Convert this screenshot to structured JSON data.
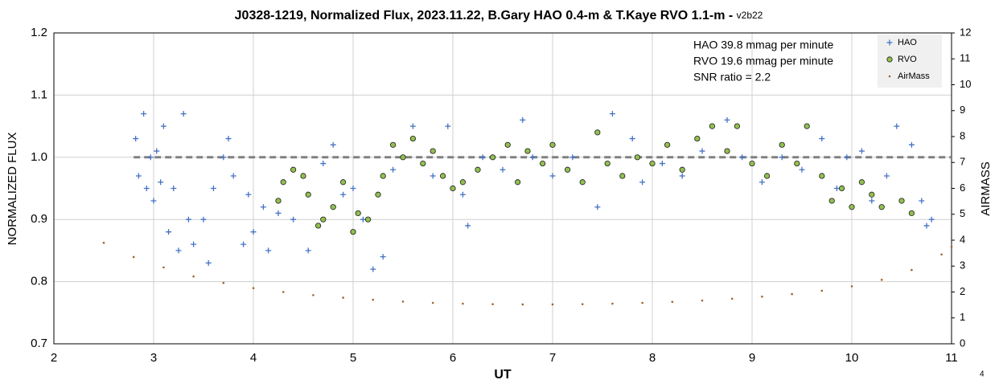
{
  "chart_data": {
    "type": "scatter",
    "title": "J0328-1219, Normalized Flux, 2023.11.22, B.Gary HAO 0.4-m & T.Kaye RVO 1.1-m - ",
    "title_suffix": "v2b22",
    "x_label": "UT",
    "y_label": "NORMALIZED FLUX",
    "y2_label": "AIRMASS",
    "annotations": [
      "HAO 39.8 mmag per minute",
      "RVO 19.6 mmag per minute",
      "SNR ratio = 2.2"
    ],
    "footer": "4",
    "xlim": [
      2,
      11
    ],
    "xticks": [
      2,
      3,
      4,
      5,
      6,
      7,
      8,
      9,
      10,
      11
    ],
    "ylim": [
      0.7,
      1.2
    ],
    "yticks": [
      0.7,
      0.8,
      0.9,
      {
        "value": 1,
        "label": "1.0"
      },
      1.1,
      1.2
    ],
    "y2lim": [
      0,
      12
    ],
    "y2ticks": [
      0,
      1,
      2,
      3,
      4,
      5,
      6,
      7,
      8,
      9,
      10,
      11,
      12
    ],
    "grid": true,
    "reference_line": {
      "y": 1,
      "x": [
        2.8,
        11
      ],
      "color": "#808080"
    },
    "series": [
      {
        "name": "HAO",
        "color": "#4472c4",
        "marker": "plus",
        "x": [
          2.82,
          2.85,
          2.9,
          2.93,
          2.97,
          3.0,
          3.03,
          3.07,
          3.1,
          3.15,
          3.2,
          3.25,
          3.3,
          3.35,
          3.4,
          3.5,
          3.55,
          3.6,
          3.7,
          3.75,
          3.8,
          3.9,
          3.95,
          4.0,
          4.1,
          4.15,
          4.25,
          4.4,
          4.55,
          4.7,
          4.8,
          4.9,
          5.0,
          5.1,
          5.2,
          5.3,
          5.4,
          5.6,
          5.8,
          5.95,
          6.1,
          6.15,
          6.3,
          6.5,
          6.7,
          6.8,
          7.0,
          7.2,
          7.45,
          7.6,
          7.8,
          7.9,
          8.1,
          8.3,
          8.5,
          8.75,
          8.9,
          9.1,
          9.3,
          9.5,
          9.7,
          9.85,
          9.95,
          10.1,
          10.2,
          10.35,
          10.45,
          10.6,
          10.7,
          10.75,
          10.8
        ],
        "values": [
          1.03,
          0.97,
          1.07,
          0.95,
          1.0,
          0.93,
          1.01,
          0.96,
          1.05,
          0.88,
          0.95,
          0.85,
          1.07,
          0.9,
          0.86,
          0.9,
          0.83,
          0.95,
          1.0,
          1.03,
          0.97,
          0.86,
          0.94,
          0.88,
          0.92,
          0.85,
          0.91,
          0.9,
          0.85,
          0.99,
          1.02,
          0.94,
          0.95,
          0.9,
          0.82,
          0.84,
          0.98,
          1.05,
          0.97,
          1.05,
          0.94,
          0.89,
          1.0,
          0.98,
          1.06,
          1.0,
          0.97,
          1.0,
          0.92,
          1.07,
          1.03,
          0.96,
          0.99,
          0.97,
          1.01,
          1.06,
          1.0,
          0.96,
          1.0,
          0.98,
          1.03,
          0.95,
          1.0,
          1.01,
          0.93,
          0.97,
          1.05,
          1.02,
          0.93,
          0.89,
          0.9
        ]
      },
      {
        "name": "RVO",
        "color": "#92c050",
        "marker": "circle",
        "x": [
          4.25,
          4.3,
          4.4,
          4.5,
          4.55,
          4.65,
          4.7,
          4.8,
          4.9,
          5.0,
          5.05,
          5.15,
          5.25,
          5.3,
          5.4,
          5.5,
          5.6,
          5.7,
          5.8,
          5.9,
          6.0,
          6.1,
          6.25,
          6.4,
          6.55,
          6.65,
          6.75,
          6.9,
          7.0,
          7.15,
          7.3,
          7.45,
          7.55,
          7.7,
          7.85,
          8.0,
          8.15,
          8.3,
          8.45,
          8.6,
          8.75,
          8.85,
          9.0,
          9.15,
          9.3,
          9.45,
          9.55,
          9.7,
          9.8,
          9.9,
          10.0,
          10.1,
          10.2,
          10.3,
          10.5,
          10.6
        ],
        "values": [
          0.93,
          0.96,
          0.98,
          0.97,
          0.94,
          0.89,
          0.9,
          0.92,
          0.96,
          0.88,
          0.91,
          0.9,
          0.94,
          0.97,
          1.02,
          1.0,
          1.03,
          0.99,
          1.01,
          0.97,
          0.95,
          0.96,
          0.98,
          1.0,
          1.02,
          0.96,
          1.01,
          0.99,
          1.02,
          0.98,
          0.96,
          1.04,
          0.99,
          0.97,
          1.0,
          0.99,
          1.02,
          0.98,
          1.03,
          1.05,
          1.01,
          1.05,
          0.99,
          0.97,
          1.02,
          0.99,
          1.05,
          0.97,
          0.93,
          0.95,
          0.92,
          0.96,
          0.94,
          0.92,
          0.93,
          0.91
        ]
      },
      {
        "name": "AirMass",
        "color": "#a0642a",
        "marker": "dot",
        "axis": "y2",
        "x": [
          2.5,
          2.8,
          3.1,
          3.4,
          3.7,
          4.0,
          4.3,
          4.6,
          4.9,
          5.2,
          5.5,
          5.8,
          6.1,
          6.4,
          6.7,
          7.0,
          7.3,
          7.6,
          7.9,
          8.2,
          8.5,
          8.8,
          9.1,
          9.4,
          9.7,
          10.0,
          10.3,
          10.6,
          10.9,
          11.0
        ],
        "values": [
          3.9,
          3.35,
          2.95,
          2.6,
          2.35,
          2.15,
          2.0,
          1.88,
          1.78,
          1.7,
          1.63,
          1.58,
          1.55,
          1.53,
          1.52,
          1.52,
          1.53,
          1.55,
          1.58,
          1.62,
          1.67,
          1.74,
          1.82,
          1.92,
          2.05,
          2.22,
          2.47,
          2.85,
          3.45,
          3.75
        ]
      }
    ]
  }
}
